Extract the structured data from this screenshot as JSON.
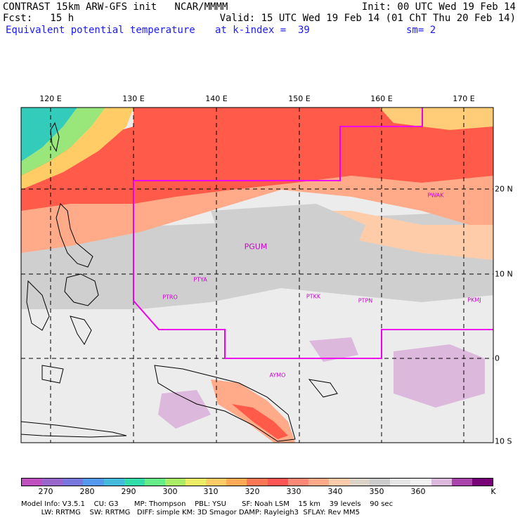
{
  "header": {
    "line1_left": "CONTRAST 15km ARW-GFS init   NCAR/MMMM",
    "line1_right": "Init: 00 UTC Wed 19 Feb 14",
    "line2_left": "Fcst:   15 h",
    "line2_right": "Valid: 15 UTC Wed 19 Feb 14 (01 ChT Thu 20 Feb 14)",
    "line3_left": "Equivalent potential temperature",
    "line3_mid": "at k-index =  39",
    "line3_right": "sm= 2"
  },
  "map": {
    "lon_labels": [
      "120 E",
      "130 E",
      "140 E",
      "150 E",
      "160 E",
      "170 E"
    ],
    "lat_labels": [
      "20 N",
      "10 N",
      "0",
      "10 S"
    ],
    "stations": {
      "pgum": "PGUM",
      "ptya": "PTYA",
      "ptro": "PTRO",
      "ptkk": "PTKK",
      "ptpn": "PTPN",
      "pkmj": "PKMJ",
      "pwak": "PWAK",
      "aymo": "AYMO"
    }
  },
  "colorbar": {
    "colors": [
      "#c050c0",
      "#9966cc",
      "#7777dd",
      "#5599ee",
      "#44bbdd",
      "#33ddaa",
      "#66ee88",
      "#aaee66",
      "#eeee66",
      "#ffcc66",
      "#ffaa55",
      "#ff7755",
      "#ff5555",
      "#ff8877",
      "#ffaa88",
      "#ffccaa",
      "#ddd4c8",
      "#cccccc",
      "#e6e6e6",
      "#f2f2f2",
      "#ddb8dd",
      "#aa44aa",
      "#770077"
    ],
    "ticks": [
      "270",
      "280",
      "290",
      "300",
      "310",
      "320",
      "330",
      "340",
      "350",
      "360"
    ],
    "unit": "K"
  },
  "model_info": {
    "line1": "Model Info: V3.5.1    CU: G3       MP: Thompson    PBL: YSU       SF: Noah LSM    15 km    39 levels    90 sec",
    "line2": "         LW: RRTMG    SW: RRTMG   DIFF: simple KM: 3D Smagor DAMP: Rayleigh3  SFLAY: Rev MM5"
  }
}
